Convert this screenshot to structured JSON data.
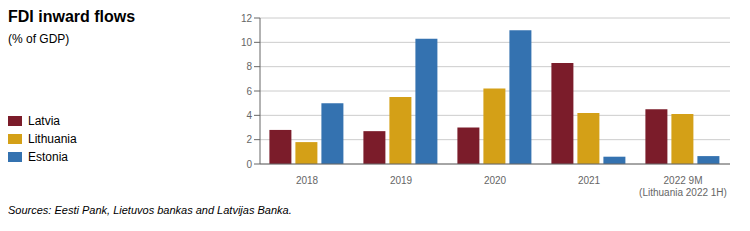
{
  "chart_data": {
    "type": "bar",
    "title": "FDI inward flows",
    "subtitle": "(% of GDP)",
    "categories": [
      "2018",
      "2019",
      "2020",
      "2021",
      "2022 9M\n(Lithuania 2022 1H)"
    ],
    "series": [
      {
        "name": "Latvia",
        "color": "#7B1C2A",
        "values": [
          2.8,
          2.7,
          3.0,
          8.3,
          4.5
        ]
      },
      {
        "name": "Lithuania",
        "color": "#D4A017",
        "values": [
          1.8,
          5.5,
          6.2,
          4.2,
          4.1
        ]
      },
      {
        "name": "Estonia",
        "color": "#3472B0",
        "values": [
          5.0,
          10.3,
          11.0,
          0.6,
          0.65
        ]
      }
    ],
    "ylim": [
      0,
      12
    ],
    "yticks": [
      0,
      2,
      4,
      6,
      8,
      10,
      12
    ],
    "grid": true,
    "legend": "lower left",
    "annotations": [
      "Sources: Eesti Pank, Lietuvos bankas and Latvijas Banka."
    ]
  }
}
